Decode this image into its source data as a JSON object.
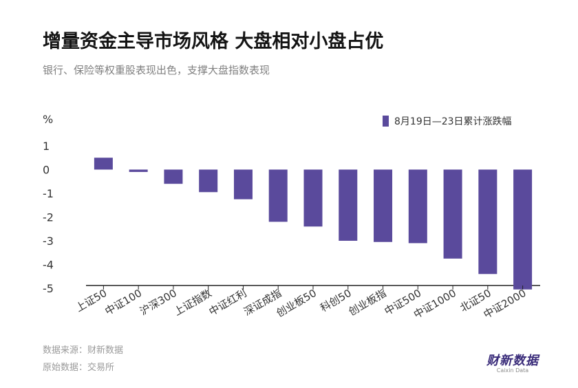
{
  "title": "增量资金主导市场风格 大盘相对小盘占优",
  "subtitle": "银行、保险等权重股表现出色，支撑大盘指数表现",
  "footer": {
    "source": "数据来源：财新数据",
    "raw": "原始数据：交易所"
  },
  "brand": {
    "name": "财新数据",
    "sub": "Caixin Data"
  },
  "colors": {
    "bar": "#5a4a9c",
    "axis": "#222222",
    "grid": "#e6e6e6",
    "text": "#333333"
  },
  "chart_data": {
    "type": "bar",
    "ylabel": "%",
    "ylim": [
      -5,
      1
    ],
    "yticks": [
      1,
      0,
      -1,
      -2,
      -3,
      -4,
      -5
    ],
    "grid": false,
    "legend_position": "top-right",
    "categories": [
      "上证50",
      "中证100",
      "沪深300",
      "上证指数",
      "中证红利",
      "深证成指",
      "创业板50",
      "科创50",
      "创业板指",
      "中证500",
      "中证1000",
      "北证50",
      "中证2000"
    ],
    "series": [
      {
        "name": "8月19日—23日累计涨跌幅",
        "values": [
          0.5,
          -0.1,
          -0.6,
          -0.95,
          -1.25,
          -2.2,
          -2.4,
          -3.0,
          -3.05,
          -3.1,
          -3.75,
          -4.4,
          -5.05
        ]
      }
    ]
  }
}
